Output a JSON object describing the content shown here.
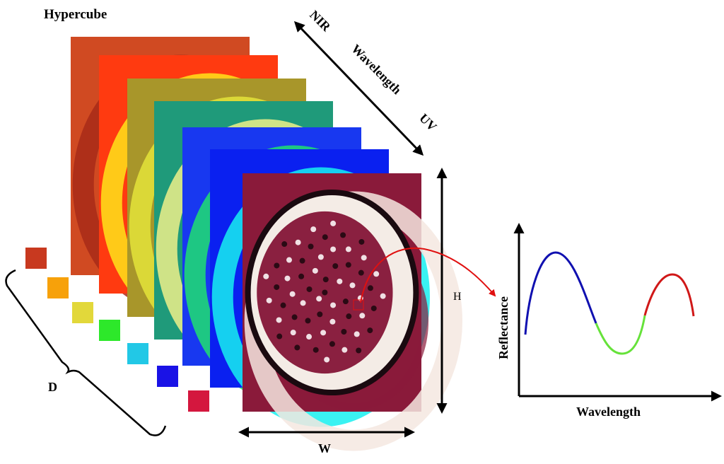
{
  "title": "Hypercube",
  "wavelength_axis": {
    "long_end": "NIR",
    "label": "Wavelength",
    "short_end": "UV"
  },
  "dimensions": {
    "height": "H",
    "width": "W",
    "depth": "D"
  },
  "spectrum_plot": {
    "xlabel": "Wavelength",
    "ylabel": "Reflectance",
    "segment_colors": [
      "#1010b0",
      "#66e23a",
      "#d01818"
    ]
  },
  "band_colors": [
    "#c8391f",
    "#f7a10a",
    "#e2d83a",
    "#2de82a",
    "#22c8e6",
    "#1a12e6",
    "#d4173e"
  ],
  "layer_colors": [
    {
      "base": "#d04a22",
      "accent": "#a82a18"
    },
    {
      "base": "#ff3a10",
      "accent": "#ffe41a"
    },
    {
      "base": "#a8962a",
      "accent": "#e4e43a"
    },
    {
      "base": "#1f9a7a",
      "accent": "#eef08a"
    },
    {
      "base": "#1838f0",
      "accent": "#20e070"
    },
    {
      "base": "#0a20f0",
      "accent": "#18f0f0"
    },
    {
      "base": "#8a1a3a",
      "accent": "#f4e8e0"
    }
  ],
  "pointer_color": "#e01010"
}
